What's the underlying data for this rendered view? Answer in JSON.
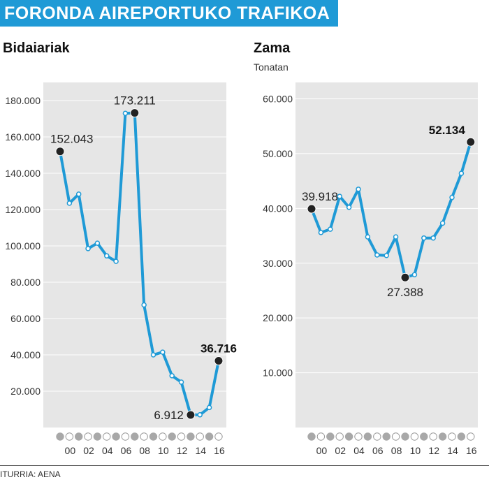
{
  "title": "FORONDA AIREPORTUKO TRAFIKOA",
  "source": "ITURRIA: AENA",
  "colors": {
    "accent": "#1f9ad6",
    "panel": "#e6e6e6",
    "marker": "#222222"
  },
  "chart_data": [
    {
      "type": "line",
      "title": "Bidaiariak",
      "subtitle": "",
      "ylim": [
        0,
        190000
      ],
      "yticks": [
        20000,
        40000,
        60000,
        80000,
        100000,
        120000,
        140000,
        160000,
        180000
      ],
      "ytick_labels": [
        "20.000",
        "40.000",
        "60.000",
        "80.000",
        "100.000",
        "120.000",
        "140.000",
        "160.000",
        "180.000"
      ],
      "x": [
        1999,
        2000,
        2001,
        2002,
        2003,
        2004,
        2005,
        2006,
        2007,
        2008,
        2009,
        2010,
        2011,
        2012,
        2013,
        2014,
        2015,
        2016
      ],
      "xtick_labels": [
        "00",
        "02",
        "04",
        "06",
        "08",
        "10",
        "12",
        "14",
        "16"
      ],
      "xtick_years": [
        2000,
        2002,
        2004,
        2006,
        2008,
        2010,
        2012,
        2014,
        2016
      ],
      "values": [
        152043,
        123500,
        128500,
        98500,
        101500,
        94500,
        91500,
        173000,
        173211,
        67500,
        40000,
        41500,
        28500,
        25000,
        6912,
        7000,
        11000,
        36716
      ],
      "highlights": [
        {
          "index": 0,
          "label": "152.043",
          "bold": false,
          "pos": "above"
        },
        {
          "index": 8,
          "label": "173.211",
          "bold": false,
          "pos": "above"
        },
        {
          "index": 14,
          "label": "6.912",
          "bold": false,
          "pos": "left"
        },
        {
          "index": 17,
          "label": "36.716",
          "bold": true,
          "pos": "above"
        }
      ]
    },
    {
      "type": "line",
      "title": "Zama",
      "subtitle": "Tonatan",
      "ylim": [
        0,
        63000
      ],
      "yticks": [
        10000,
        20000,
        30000,
        40000,
        50000,
        60000
      ],
      "ytick_labels": [
        "10.000",
        "20.000",
        "30.000",
        "40.000",
        "50.000",
        "60.000"
      ],
      "x": [
        1999,
        2000,
        2001,
        2002,
        2003,
        2004,
        2005,
        2006,
        2007,
        2008,
        2009,
        2010,
        2011,
        2012,
        2013,
        2014,
        2015,
        2016
      ],
      "xtick_labels": [
        "00",
        "02",
        "04",
        "06",
        "08",
        "10",
        "12",
        "14",
        "16"
      ],
      "xtick_years": [
        2000,
        2002,
        2004,
        2006,
        2008,
        2010,
        2012,
        2014,
        2016
      ],
      "values": [
        39918,
        35600,
        36200,
        42200,
        40200,
        43500,
        34800,
        31500,
        31400,
        34800,
        27388,
        27900,
        34600,
        34600,
        37300,
        42000,
        46400,
        52134
      ],
      "highlights": [
        {
          "index": 0,
          "label": "39.918",
          "bold": false,
          "pos": "above"
        },
        {
          "index": 10,
          "label": "27.388",
          "bold": false,
          "pos": "below"
        },
        {
          "index": 17,
          "label": "52.134",
          "bold": true,
          "pos": "above-left"
        }
      ]
    }
  ]
}
